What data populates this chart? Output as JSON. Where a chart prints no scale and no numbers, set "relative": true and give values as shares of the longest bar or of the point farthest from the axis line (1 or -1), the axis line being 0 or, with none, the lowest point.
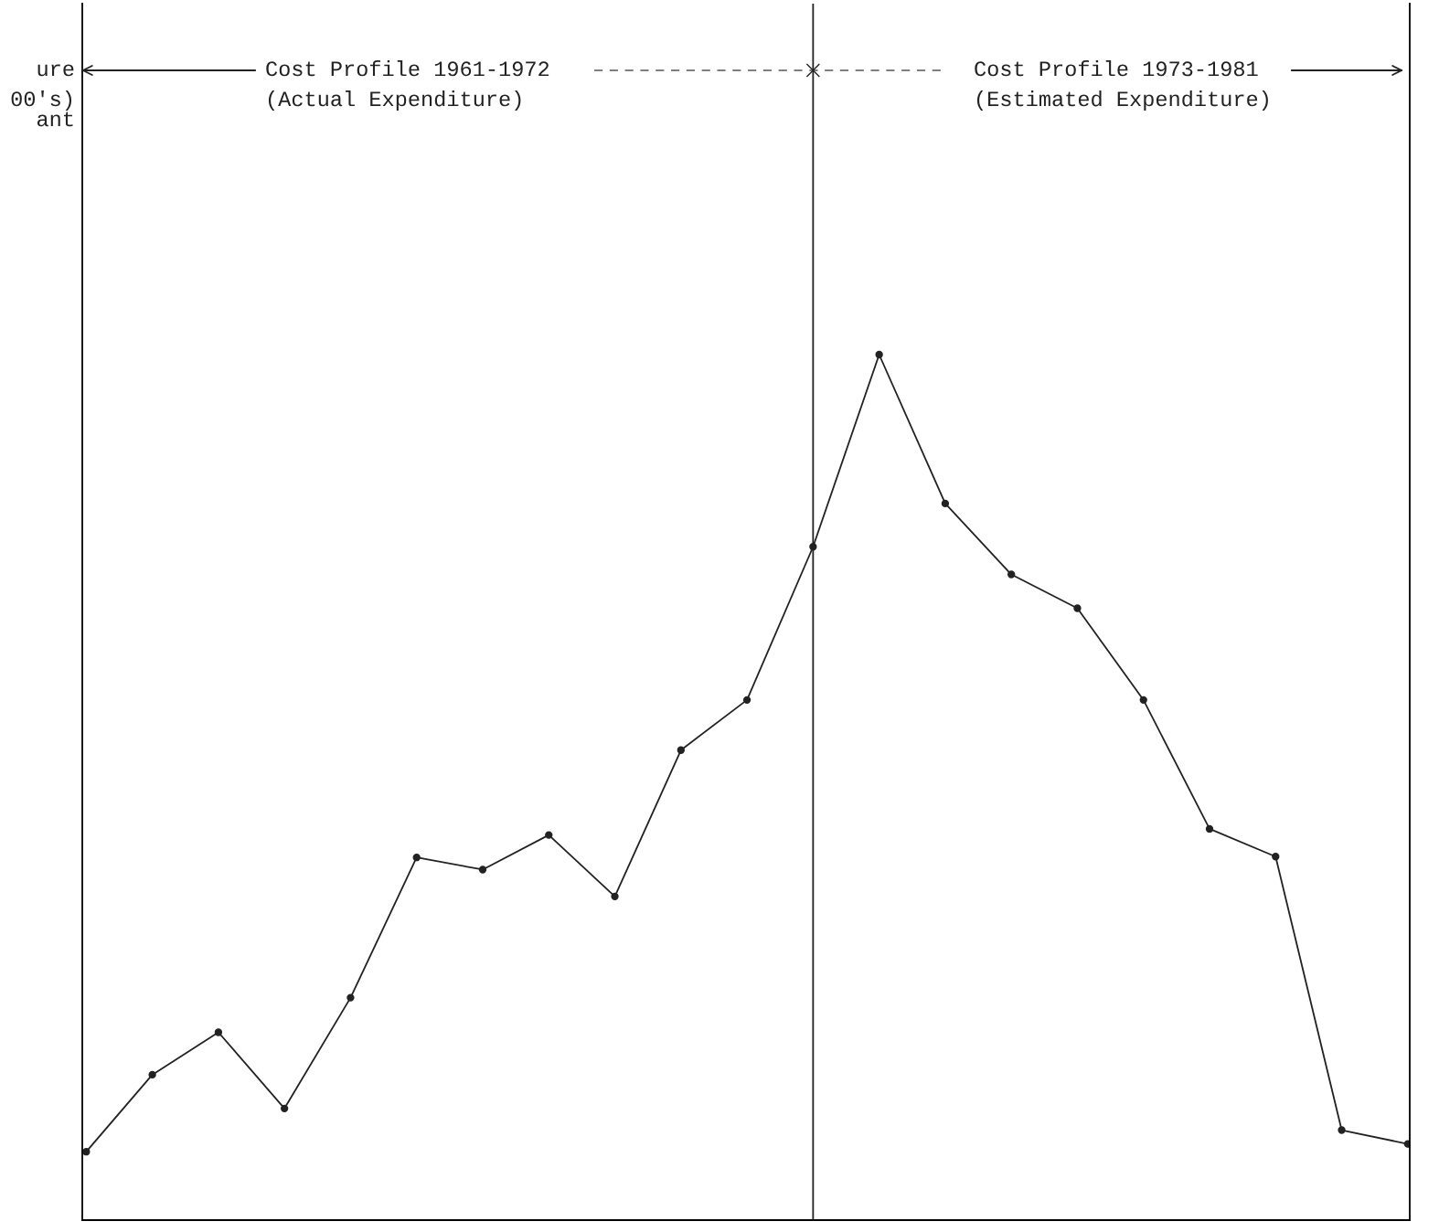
{
  "chart_data": {
    "type": "line",
    "relative": true,
    "categories": [
      null,
      null,
      null,
      null,
      null,
      null,
      null,
      null,
      null,
      null,
      null,
      null,
      null,
      null,
      null,
      null,
      null,
      null,
      null,
      null,
      null
    ],
    "series": [
      {
        "color": "#222222",
        "values": [
          0.079,
          0.168,
          0.217,
          0.129,
          0.257,
          0.419,
          0.405,
          0.445,
          0.374,
          0.543,
          0.601,
          0.778,
          1,
          0.828,
          0.746,
          0.707,
          0.601,
          0.452,
          0.42,
          0.104,
          0.088
        ]
      }
    ],
    "marker": "circle",
    "line_style": "solid",
    "annotations": [
      "ure",
      "00's)",
      "ant",
      "Cost Profile 1961-1972",
      "(Actual Expenditure)",
      "Cost Profile 1973-1981",
      "(Estimated Expenditure)"
    ]
  }
}
